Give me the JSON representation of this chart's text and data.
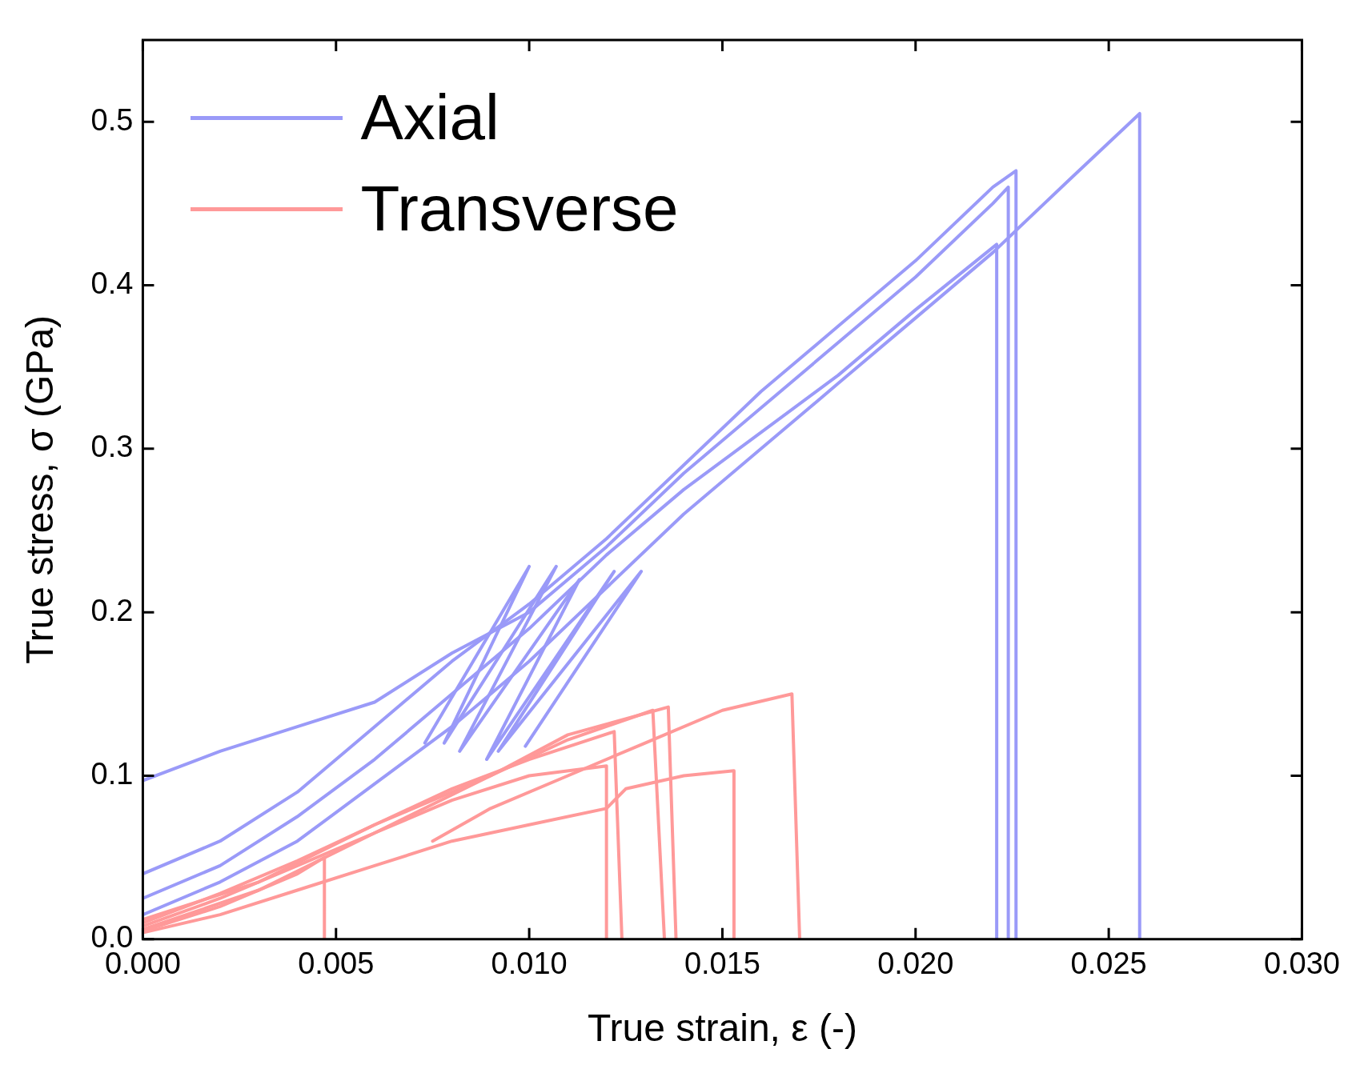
{
  "chart_data": {
    "type": "line",
    "xlabel": "True strain, ε (-)",
    "ylabel": "True stress, σ (GPa)",
    "xlim": [
      0,
      0.03
    ],
    "ylim": [
      0,
      0.55
    ],
    "xticks": [
      {
        "value": 0,
        "label": "0.000"
      },
      {
        "value": 0.005,
        "label": "0.005"
      },
      {
        "value": 0.01,
        "label": "0.010"
      },
      {
        "value": 0.015,
        "label": "0.015"
      },
      {
        "value": 0.02,
        "label": "0.020"
      },
      {
        "value": 0.025,
        "label": "0.025"
      },
      {
        "value": 0.03,
        "label": "0.030"
      }
    ],
    "yticks": [
      {
        "value": 0,
        "label": "0.0"
      },
      {
        "value": 0.1,
        "label": "0.1"
      },
      {
        "value": 0.2,
        "label": "0.2"
      },
      {
        "value": 0.3,
        "label": "0.3"
      },
      {
        "value": 0.4,
        "label": "0.4"
      },
      {
        "value": 0.5,
        "label": "0.5"
      }
    ],
    "legend": "top left",
    "marker": "none",
    "line_style": "solid",
    "series": [
      {
        "name": "Axial",
        "color": "#9a9af8",
        "x": [
          0,
          0.002,
          0.004,
          0.006,
          0.008,
          0.01,
          0.012,
          0.014,
          0.016,
          0.018,
          0.02,
          0.022,
          0.024,
          0.0258,
          0.0258
        ],
        "values": [
          0.015,
          0.035,
          0.06,
          0.095,
          0.13,
          0.17,
          0.215,
          0.26,
          0.3,
          0.34,
          0.38,
          0.42,
          0.465,
          0.505,
          0
        ]
      },
      {
        "color": "#9a9af8",
        "x": [
          0,
          0.002,
          0.004,
          0.006,
          0.008,
          0.01,
          0.012,
          0.014,
          0.016,
          0.018,
          0.02,
          0.0221,
          0.0221
        ],
        "values": [
          0.025,
          0.045,
          0.075,
          0.11,
          0.15,
          0.19,
          0.235,
          0.275,
          0.31,
          0.345,
          0.385,
          0.425,
          0
        ]
      },
      {
        "color": "#9a9af8",
        "x": [
          0,
          0.002,
          0.004,
          0.006,
          0.008,
          0.01,
          0.012,
          0.014,
          0.016,
          0.018,
          0.02,
          0.022,
          0.0226,
          0.0226
        ],
        "values": [
          0.04,
          0.06,
          0.09,
          0.13,
          0.17,
          0.205,
          0.245,
          0.29,
          0.335,
          0.375,
          0.415,
          0.46,
          0.47,
          0
        ]
      },
      {
        "color": "#9a9af8",
        "x": [
          0,
          0.002,
          0.004,
          0.006,
          0.008,
          0.01,
          0.012,
          0.014,
          0.016,
          0.018,
          0.02,
          0.022,
          0.0224,
          0.0224
        ],
        "values": [
          0.097,
          0.115,
          0.13,
          0.145,
          0.175,
          0.2,
          0.24,
          0.285,
          0.325,
          0.365,
          0.405,
          0.45,
          0.46,
          0
        ]
      },
      {
        "color": "#9a9af8",
        "x": [
          0.0073,
          0.01,
          0.0078,
          0.0107,
          0.0082,
          0.0113,
          0.0089,
          0.0122,
          0.0092,
          0.0129,
          0.0099
        ],
        "values": [
          0.12,
          0.228,
          0.12,
          0.228,
          0.115,
          0.22,
          0.11,
          0.225,
          0.115,
          0.225,
          0.118
        ]
      },
      {
        "name": "Transverse",
        "color": "#ff9999",
        "x": [
          0,
          0.002,
          0.004,
          0.0047,
          0.0047
        ],
        "values": [
          0.005,
          0.02,
          0.04,
          0.05,
          0
        ]
      },
      {
        "color": "#ff9999",
        "x": [
          0,
          0.002,
          0.004,
          0.006,
          0.008,
          0.01,
          0.012,
          0.012
        ],
        "values": [
          0.008,
          0.025,
          0.045,
          0.065,
          0.085,
          0.1,
          0.106,
          0
        ]
      },
      {
        "color": "#ff9999",
        "x": [
          0,
          0.002,
          0.004,
          0.006,
          0.008,
          0.01,
          0.0122,
          0.0124
        ],
        "values": [
          0.01,
          0.028,
          0.048,
          0.07,
          0.092,
          0.11,
          0.127,
          0
        ]
      },
      {
        "color": "#ff9999",
        "x": [
          0,
          0.003,
          0.006,
          0.009,
          0.011,
          0.0132,
          0.0135
        ],
        "values": [
          0.006,
          0.03,
          0.065,
          0.1,
          0.122,
          0.14,
          0
        ]
      },
      {
        "color": "#ff9999",
        "x": [
          0,
          0.003,
          0.006,
          0.009,
          0.011,
          0.0136,
          0.0138
        ],
        "values": [
          0.012,
          0.035,
          0.07,
          0.1,
          0.125,
          0.142,
          0
        ]
      },
      {
        "color": "#ff9999",
        "x": [
          0,
          0.002,
          0.004,
          0.006,
          0.008,
          0.01,
          0.012,
          0.0125,
          0.014,
          0.0153,
          0.0153
        ],
        "values": [
          0.004,
          0.015,
          0.03,
          0.045,
          0.06,
          0.07,
          0.08,
          0.092,
          0.1,
          0.103,
          0
        ]
      },
      {
        "color": "#ff9999",
        "x": [
          0.0075,
          0.009,
          0.011,
          0.013,
          0.015,
          0.0168,
          0.017
        ],
        "values": [
          0.06,
          0.08,
          0.1,
          0.12,
          0.14,
          0.15,
          0
        ]
      }
    ]
  }
}
